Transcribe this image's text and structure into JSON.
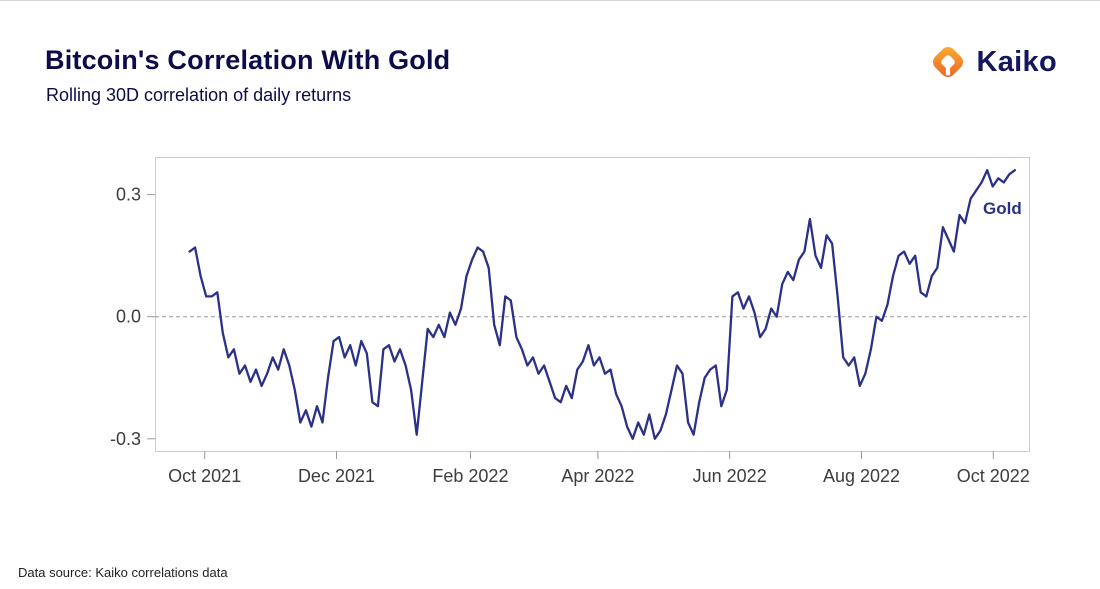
{
  "header": {
    "title": "Bitcoin's Correlation With Gold",
    "subtitle": "Rolling 30D correlation of daily returns",
    "logo_text": "Kaiko"
  },
  "footer": {
    "source": "Data source: Kaiko correlations data"
  },
  "colors": {
    "line": "#2a3187",
    "title_navy": "#0c0c4a",
    "logo_navy": "#14175e",
    "logo_orange_start": "#f9b233",
    "logo_orange_end": "#ee5f23",
    "axis_border": "#cccccc",
    "tick_text": "#3d3d3d",
    "zero_line": "#999999"
  },
  "chart_data": {
    "type": "line",
    "title": "Bitcoin's Correlation With Gold",
    "subtitle": "Rolling 30D correlation of daily returns",
    "xlabel": "",
    "ylabel": "",
    "ylim": [
      -0.33,
      0.39
    ],
    "y_ticks": [
      0.3,
      0.0,
      -0.3
    ],
    "x_domain_days": [
      0,
      405
    ],
    "x_ticks": [
      {
        "day": 23,
        "label": "Oct 2021"
      },
      {
        "day": 84,
        "label": "Dec 2021"
      },
      {
        "day": 146,
        "label": "Feb 2022"
      },
      {
        "day": 205,
        "label": "Apr 2022"
      },
      {
        "day": 266,
        "label": "Jun 2022"
      },
      {
        "day": 327,
        "label": "Aug 2022"
      },
      {
        "day": 388,
        "label": "Oct 2022"
      }
    ],
    "grid": "dashed-zero-line-only",
    "legend_position": "inline-right",
    "series": [
      {
        "name": "Gold",
        "color": "#2a3187",
        "start_day": 16,
        "end_day": 398,
        "values": [
          0.16,
          0.17,
          0.1,
          0.05,
          0.05,
          0.06,
          -0.04,
          -0.1,
          -0.08,
          -0.14,
          -0.12,
          -0.16,
          -0.13,
          -0.17,
          -0.14,
          -0.1,
          -0.13,
          -0.08,
          -0.12,
          -0.18,
          -0.26,
          -0.23,
          -0.27,
          -0.22,
          -0.26,
          -0.15,
          -0.06,
          -0.05,
          -0.1,
          -0.07,
          -0.12,
          -0.06,
          -0.09,
          -0.21,
          -0.22,
          -0.08,
          -0.07,
          -0.11,
          -0.08,
          -0.12,
          -0.18,
          -0.29,
          -0.16,
          -0.03,
          -0.05,
          -0.02,
          -0.05,
          0.01,
          -0.02,
          0.02,
          0.1,
          0.14,
          0.17,
          0.16,
          0.12,
          -0.02,
          -0.07,
          0.05,
          0.04,
          -0.05,
          -0.08,
          -0.12,
          -0.1,
          -0.14,
          -0.12,
          -0.16,
          -0.2,
          -0.21,
          -0.17,
          -0.2,
          -0.13,
          -0.11,
          -0.07,
          -0.12,
          -0.1,
          -0.14,
          -0.13,
          -0.19,
          -0.22,
          -0.27,
          -0.3,
          -0.26,
          -0.29,
          -0.24,
          -0.3,
          -0.28,
          -0.24,
          -0.18,
          -0.12,
          -0.14,
          -0.26,
          -0.29,
          -0.21,
          -0.15,
          -0.13,
          -0.12,
          -0.22,
          -0.18,
          0.05,
          0.06,
          0.02,
          0.05,
          0.01,
          -0.05,
          -0.03,
          0.02,
          0.0,
          0.08,
          0.11,
          0.09,
          0.14,
          0.16,
          0.24,
          0.15,
          0.12,
          0.2,
          0.18,
          0.05,
          -0.1,
          -0.12,
          -0.1,
          -0.17,
          -0.14,
          -0.08,
          0.0,
          -0.01,
          0.03,
          0.1,
          0.15,
          0.16,
          0.13,
          0.15,
          0.06,
          0.05,
          0.1,
          0.12,
          0.22,
          0.19,
          0.16,
          0.25,
          0.23,
          0.29,
          0.31,
          0.33,
          0.36,
          0.32,
          0.34,
          0.33,
          0.35,
          0.36
        ]
      }
    ]
  }
}
